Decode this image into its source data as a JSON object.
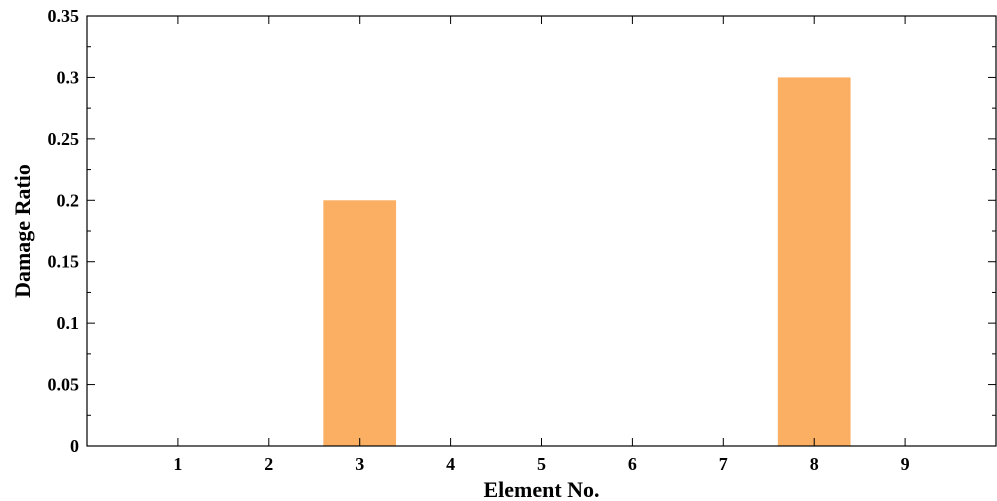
{
  "chart_data": {
    "type": "bar",
    "categories": [
      "1",
      "2",
      "3",
      "4",
      "5",
      "6",
      "7",
      "8",
      "9"
    ],
    "values": [
      0,
      0,
      0.2,
      0,
      0,
      0,
      0,
      0.3,
      0
    ],
    "xlabel": "Element No.",
    "ylabel": "Damage Ratio",
    "xlim": [
      0,
      10
    ],
    "ylim": [
      0,
      0.35
    ],
    "yticks": [
      "0",
      "0.05",
      "0.1",
      "0.15",
      "0.2",
      "0.25",
      "0.3",
      "0.35"
    ],
    "grid": false,
    "bar_color": "#fbaf62"
  }
}
